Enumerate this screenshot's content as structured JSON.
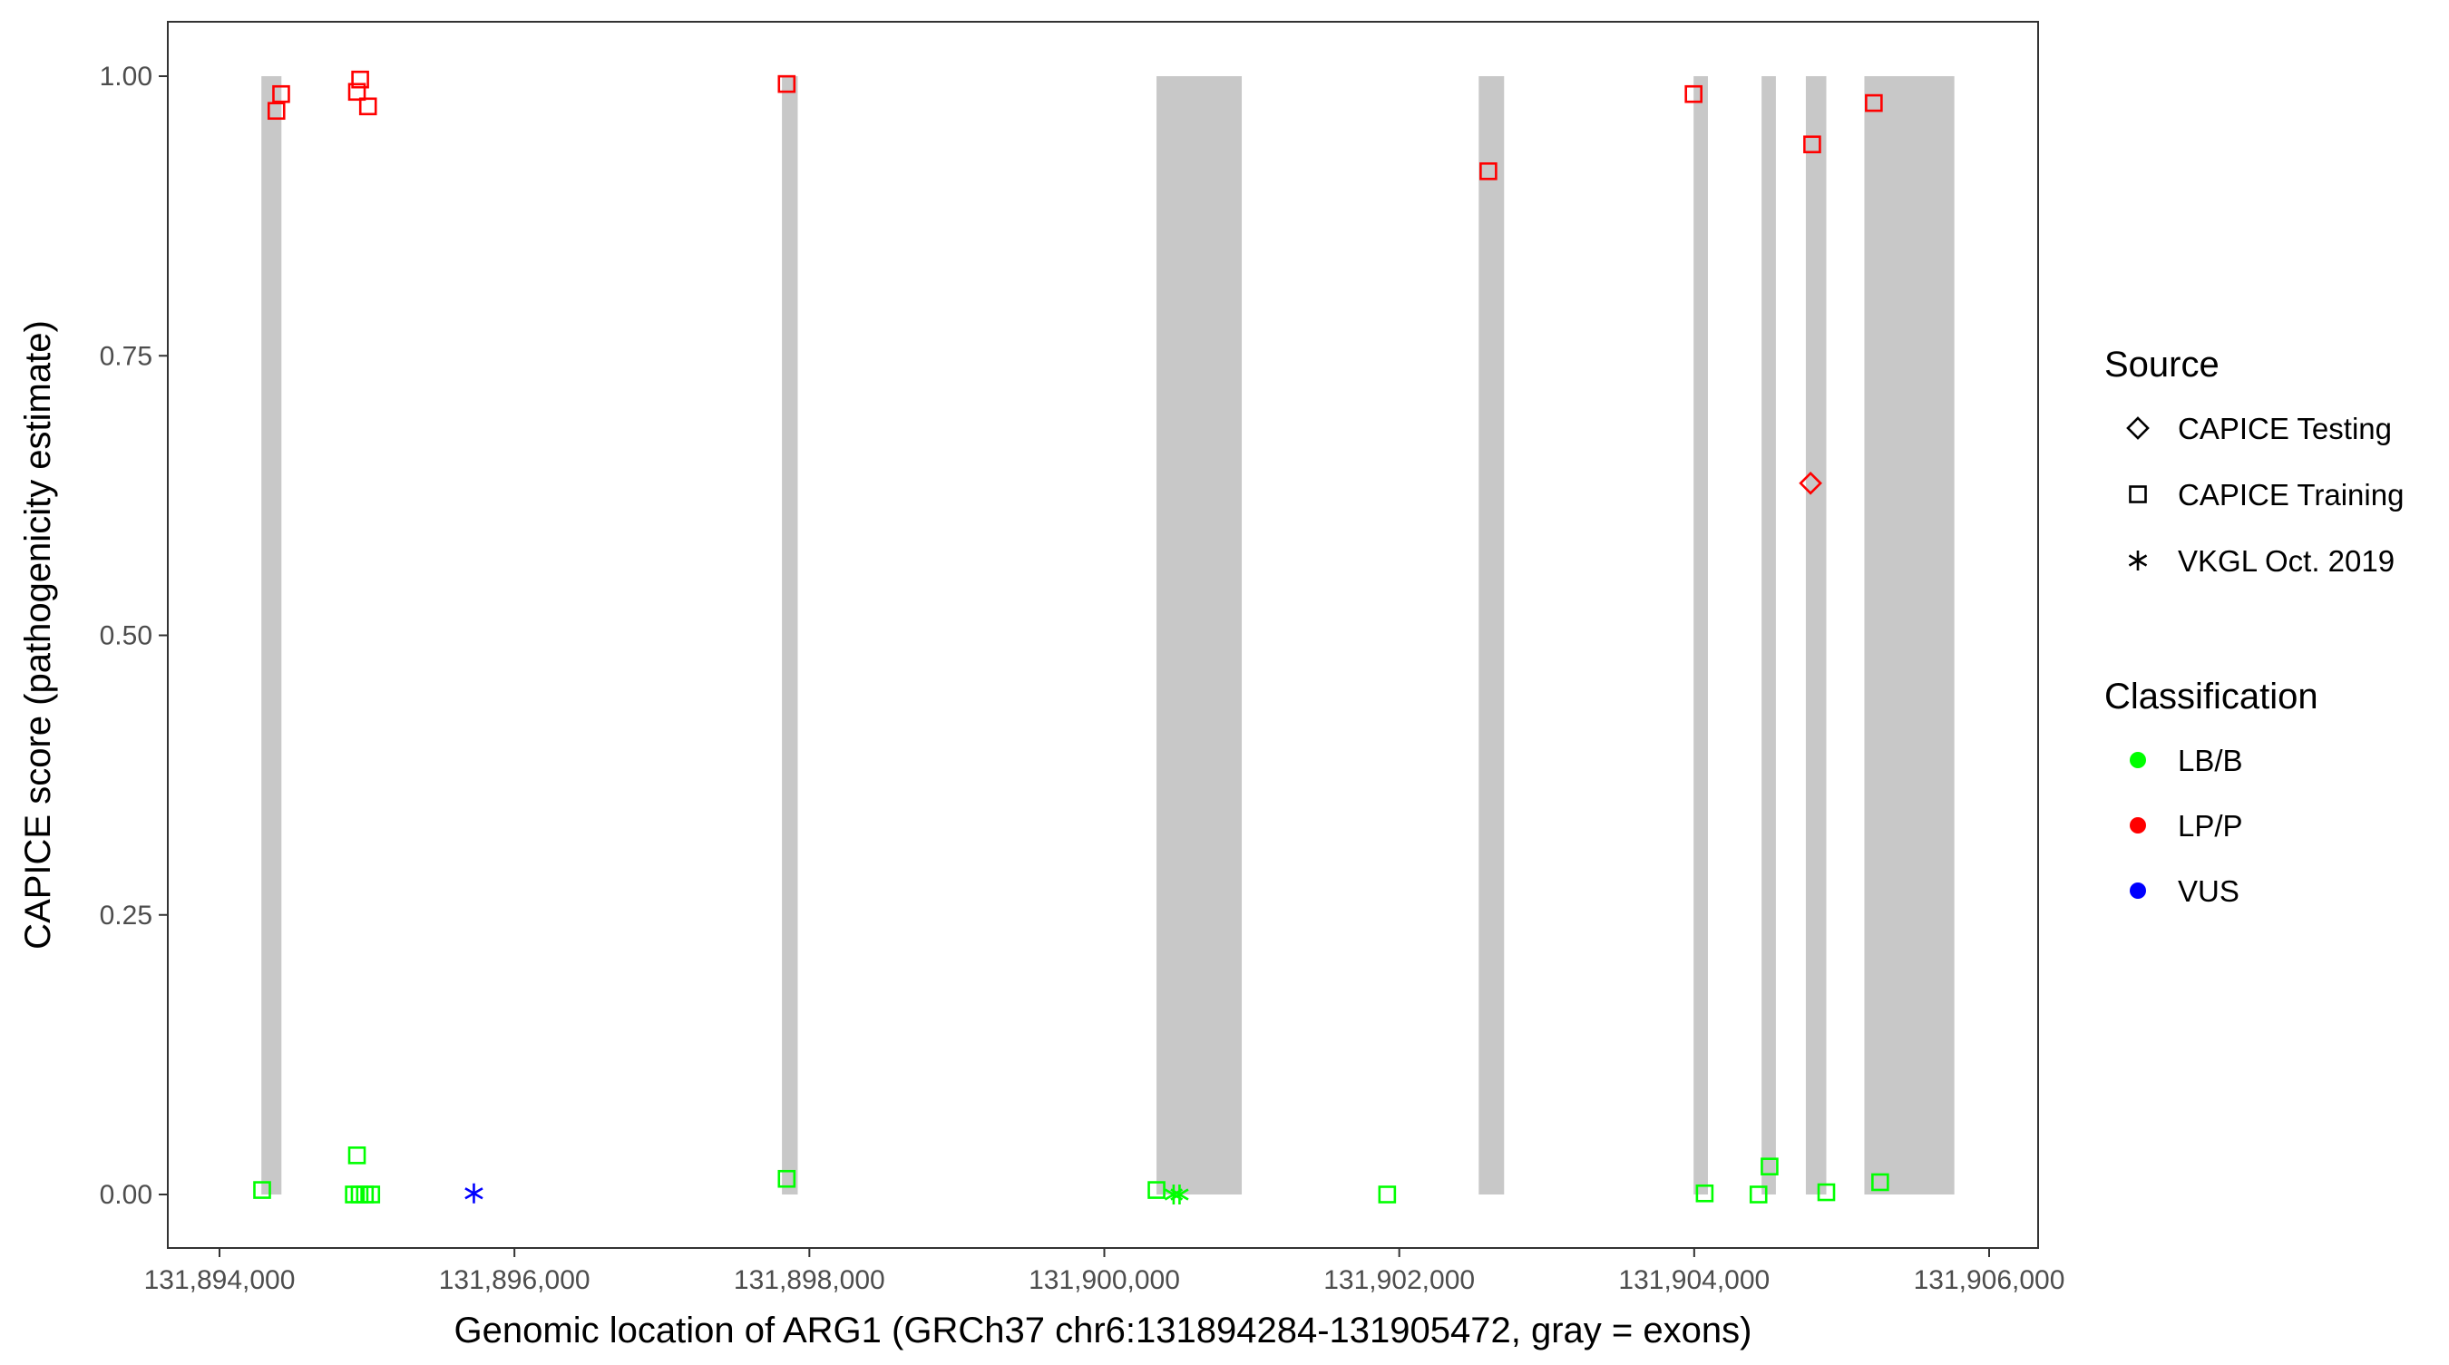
{
  "chart_data": {
    "type": "scatter",
    "xlabel": "Genomic location of ARG1 (GRCh37 chr6:131894284-131905472, gray = exons)",
    "ylabel": "CAPICE score (pathogenicity estimate)",
    "xlim": [
      131893650,
      131906350
    ],
    "ylim": [
      -0.047,
      1.047
    ],
    "x_ticks": [
      131894000,
      131896000,
      131898000,
      131900000,
      131902000,
      131904000,
      131906000
    ],
    "x_tick_labels": [
      "131,894,000",
      "131,896,000",
      "131,898,000",
      "131,900,000",
      "131,902,000",
      "131,904,000",
      "131,906,000"
    ],
    "y_ticks": [
      0,
      0.25,
      0.5,
      0.75,
      1.0
    ],
    "y_tick_labels": [
      "0.00",
      "0.25",
      "0.50",
      "0.75",
      "1.00"
    ],
    "grid": false,
    "exon_color": "#c8c8c8",
    "exons": [
      [
        131894284,
        131894420
      ],
      [
        131897814,
        131897921
      ],
      [
        131900354,
        131900932
      ],
      [
        131902539,
        131902711
      ],
      [
        131903996,
        131904093
      ],
      [
        131904457,
        131904554
      ],
      [
        131904757,
        131904896
      ],
      [
        131905154,
        131905764
      ]
    ],
    "legend_position": "right",
    "legend_source": {
      "title": "Source",
      "items": [
        {
          "label": "CAPICE Testing",
          "shape": "diamond"
        },
        {
          "label": "CAPICE Training",
          "shape": "square"
        },
        {
          "label": "VKGL Oct. 2019",
          "shape": "asterisk"
        }
      ]
    },
    "legend_classification": {
      "title": "Classification",
      "items": [
        {
          "label": "LB/B",
          "color": "#00ff00"
        },
        {
          "label": "LP/P",
          "color": "#ff0000"
        },
        {
          "label": "VUS",
          "color": "#0000ff"
        }
      ]
    },
    "points": [
      {
        "x": 131894386,
        "y": 0.969,
        "source": "CAPICE Training",
        "class": "LP/P"
      },
      {
        "x": 131894418,
        "y": 0.984,
        "source": "CAPICE Training",
        "class": "LP/P"
      },
      {
        "x": 131894932,
        "y": 0.986,
        "source": "CAPICE Training",
        "class": "LP/P"
      },
      {
        "x": 131894954,
        "y": 0.997,
        "source": "CAPICE Training",
        "class": "LP/P"
      },
      {
        "x": 131895007,
        "y": 0.973,
        "source": "CAPICE Training",
        "class": "LP/P"
      },
      {
        "x": 131897846,
        "y": 0.993,
        "source": "CAPICE Training",
        "class": "LP/P"
      },
      {
        "x": 131902604,
        "y": 0.915,
        "source": "CAPICE Training",
        "class": "LP/P"
      },
      {
        "x": 131903996,
        "y": 0.984,
        "source": "CAPICE Training",
        "class": "LP/P"
      },
      {
        "x": 131904800,
        "y": 0.939,
        "source": "CAPICE Training",
        "class": "LP/P"
      },
      {
        "x": 131905218,
        "y": 0.976,
        "source": "CAPICE Training",
        "class": "LP/P"
      },
      {
        "x": 131904789,
        "y": 0.636,
        "source": "CAPICE Testing",
        "class": "LP/P"
      },
      {
        "x": 131894289,
        "y": 0.004,
        "source": "CAPICE Training",
        "class": "LB/B"
      },
      {
        "x": 131894932,
        "y": 0.035,
        "source": "CAPICE Training",
        "class": "LB/B"
      },
      {
        "x": 131894911,
        "y": 0.0,
        "source": "CAPICE Training",
        "class": "LB/B"
      },
      {
        "x": 131894950,
        "y": 0.0,
        "source": "CAPICE Training",
        "class": "LB/B"
      },
      {
        "x": 131894986,
        "y": 0.0,
        "source": "CAPICE Training",
        "class": "LB/B"
      },
      {
        "x": 131895029,
        "y": 0.0,
        "source": "CAPICE Training",
        "class": "LB/B"
      },
      {
        "x": 131897846,
        "y": 0.014,
        "source": "CAPICE Training",
        "class": "LB/B"
      },
      {
        "x": 131900354,
        "y": 0.004,
        "source": "CAPICE Training",
        "class": "LB/B"
      },
      {
        "x": 131901918,
        "y": 0.0,
        "source": "CAPICE Training",
        "class": "LB/B"
      },
      {
        "x": 131904071,
        "y": 0.001,
        "source": "CAPICE Training",
        "class": "LB/B"
      },
      {
        "x": 131904436,
        "y": 0.0,
        "source": "CAPICE Training",
        "class": "LB/B"
      },
      {
        "x": 131904511,
        "y": 0.025,
        "source": "CAPICE Training",
        "class": "LB/B"
      },
      {
        "x": 131904896,
        "y": 0.002,
        "source": "CAPICE Training",
        "class": "LB/B"
      },
      {
        "x": 131905261,
        "y": 0.011,
        "source": "CAPICE Training",
        "class": "LB/B"
      },
      {
        "x": 131900470,
        "y": 0.0,
        "source": "VKGL Oct. 2019",
        "class": "LB/B"
      },
      {
        "x": 131900510,
        "y": 0.0,
        "source": "VKGL Oct. 2019",
        "class": "LB/B"
      },
      {
        "x": 131895725,
        "y": 0.001,
        "source": "VKGL Oct. 2019",
        "class": "VUS"
      }
    ]
  }
}
